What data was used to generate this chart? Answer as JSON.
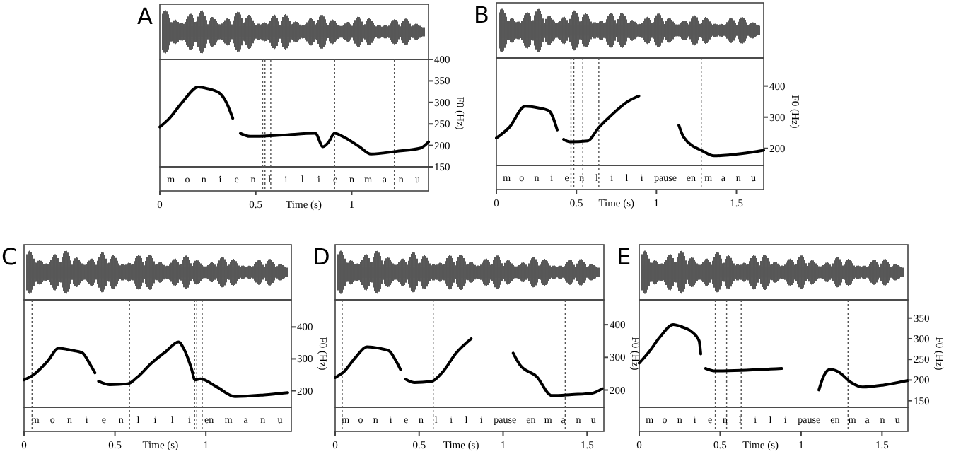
{
  "chart_data": [
    {
      "type": "line",
      "title": "A",
      "xlabel": "Time (s)",
      "ylabel": "F0 (Hz)",
      "xlim": [
        0,
        1.4
      ],
      "xticks": [
        0,
        0.5,
        1
      ],
      "ylim": [
        150,
        400
      ],
      "yticks": [
        150,
        200,
        250,
        300,
        350,
        400
      ],
      "grid": false,
      "line_style": "solid",
      "series": [
        {
          "color": "#000000",
          "x": [
            0,
            0.05,
            0.12,
            0.2,
            0.25,
            0.31,
            0.35,
            0.38,
            0.4,
            0.42,
            0.47,
            0.64,
            0.81,
            0.85,
            0.88,
            0.91,
            0.96,
            1.04,
            1.1,
            1.23,
            1.36,
            1.4
          ],
          "values": [
            243,
            263,
            302,
            336,
            332,
            322,
            297,
            263,
            null,
            228,
            221,
            224,
            228,
            197,
            208,
            228,
            219,
            197,
            180,
            186,
            194,
            208
          ]
        }
      ],
      "ref_lines": [
        {
          "axis": "x",
          "value": 0.536,
          "line_style": "dotted",
          "color": "#555555"
        },
        {
          "axis": "x",
          "value": 0.548,
          "line_style": "dotted",
          "color": "#555555"
        },
        {
          "axis": "x",
          "value": 0.578,
          "line_style": "dotted",
          "color": "#555555"
        },
        {
          "axis": "x",
          "value": 0.911,
          "line_style": "dotted",
          "color": "#555555"
        },
        {
          "axis": "x",
          "value": 1.222,
          "line_style": "dotted",
          "color": "#555555"
        }
      ],
      "annotations": [
        "m",
        "o",
        "n",
        "i",
        "e",
        "n",
        "l",
        "i",
        "l",
        "i",
        "e",
        "n",
        "m",
        "a",
        "n",
        "u"
      ]
    },
    {
      "type": "line",
      "title": "B",
      "xlabel": "Time (s)",
      "ylabel": "F0 (Hz)",
      "xlim": [
        0,
        1.67
      ],
      "xticks": [
        0,
        0.5,
        1,
        1.5
      ],
      "ylim": [
        145,
        490
      ],
      "yticks": [
        200,
        300,
        400
      ],
      "grid": false,
      "line_style": "solid",
      "series": [
        {
          "color": "#000000",
          "x": [
            0,
            0.08,
            0.18,
            0.26,
            0.33,
            0.38,
            0.4,
            0.42,
            0.46,
            0.57,
            0.64,
            0.73,
            0.82,
            0.89,
            1.0,
            1.14,
            1.17,
            1.29,
            1.36,
            1.53,
            1.67
          ],
          "values": [
            233,
            267,
            335,
            330,
            320,
            259,
            null,
            229,
            221,
            224,
            267,
            312,
            350,
            368,
            null,
            274,
            236,
            191,
            176,
            183,
            194
          ]
        }
      ],
      "ref_lines": [
        {
          "axis": "x",
          "value": 0.466,
          "line_style": "dotted",
          "color": "#555555"
        },
        {
          "axis": "x",
          "value": 0.484,
          "line_style": "dotted",
          "color": "#555555"
        },
        {
          "axis": "x",
          "value": 0.54,
          "line_style": "dotted",
          "color": "#555555"
        },
        {
          "axis": "x",
          "value": 0.64,
          "line_style": "dotted",
          "color": "#555555"
        },
        {
          "axis": "x",
          "value": 1.28,
          "line_style": "dotted",
          "color": "#555555"
        }
      ],
      "annotations": [
        "m",
        "o",
        "n",
        "i",
        "e",
        "n",
        "l",
        "i",
        "l",
        "i",
        "pause",
        "en",
        "m",
        "a",
        "n",
        "u"
      ]
    },
    {
      "type": "line",
      "title": "C",
      "xlabel": "Time (s)",
      "ylabel": "F0 (Hz)",
      "xlim": [
        0,
        1.47
      ],
      "xticks": [
        0,
        0.5,
        1
      ],
      "ylim": [
        148,
        485
      ],
      "yticks": [
        200,
        300,
        400
      ],
      "grid": false,
      "line_style": "solid",
      "series": [
        {
          "color": "#000000",
          "x": [
            0,
            0.05,
            0.13,
            0.19,
            0.26,
            0.32,
            0.36,
            0.39,
            0.4,
            0.41,
            0.47,
            0.57,
            0.62,
            0.7,
            0.78,
            0.85,
            0.88,
            0.92,
            0.94,
            0.97,
            1.06,
            1.16,
            1.32,
            1.45
          ],
          "values": [
            234,
            249,
            293,
            333,
            327,
            319,
            286,
            256,
            null,
            230,
            219,
            222,
            241,
            286,
            323,
            353,
            330,
            271,
            234,
            237,
            212,
            182,
            187,
            194
          ]
        }
      ],
      "ref_lines": [
        {
          "axis": "x",
          "value": 0.044,
          "line_style": "dotted",
          "color": "#555555"
        },
        {
          "axis": "x",
          "value": 0.58,
          "line_style": "dotted",
          "color": "#555555"
        },
        {
          "axis": "x",
          "value": 0.938,
          "line_style": "dotted",
          "color": "#555555"
        },
        {
          "axis": "x",
          "value": 0.95,
          "line_style": "dotted",
          "color": "#555555"
        },
        {
          "axis": "x",
          "value": 0.98,
          "line_style": "dotted",
          "color": "#555555"
        }
      ],
      "annotations": [
        "m",
        "o",
        "n",
        "i",
        "e",
        "n",
        "l",
        "i",
        "l",
        "i",
        "en",
        "m",
        "a",
        "n",
        "u"
      ]
    },
    {
      "type": "line",
      "title": "D",
      "xlabel": "Time (s)",
      "ylabel": "F0 (Hz)",
      "xlim": [
        0,
        1.6
      ],
      "xticks": [
        0,
        0.5,
        1,
        1.5
      ],
      "ylim": [
        147,
        476
      ],
      "yticks": [
        200,
        300,
        400
      ],
      "grid": false,
      "line_style": "solid",
      "series": [
        {
          "color": "#000000",
          "x": [
            0,
            0.05,
            0.12,
            0.19,
            0.26,
            0.32,
            0.36,
            0.39,
            0.4,
            0.42,
            0.47,
            0.57,
            0.64,
            0.72,
            0.81,
            0.95,
            1.06,
            1.1,
            1.2,
            1.29,
            1.41,
            1.53,
            1.59
          ],
          "values": [
            238,
            255,
            299,
            332,
            328,
            320,
            291,
            262,
            null,
            233,
            223,
            226,
            255,
            313,
            357,
            null,
            313,
            277,
            241,
            183,
            186,
            190,
            204
          ]
        }
      ],
      "ref_lines": [
        {
          "axis": "x",
          "value": 0.042,
          "line_style": "dotted",
          "color": "#555555"
        },
        {
          "axis": "x",
          "value": 0.584,
          "line_style": "dotted",
          "color": "#555555"
        },
        {
          "axis": "x",
          "value": 1.37,
          "line_style": "dotted",
          "color": "#555555"
        }
      ],
      "annotations": [
        "m",
        "o",
        "n",
        "i",
        "e",
        "n",
        "l",
        "i",
        "l",
        "i",
        "pause",
        "en",
        "m",
        "a",
        "n",
        "u"
      ]
    },
    {
      "type": "line",
      "title": "E",
      "xlabel": "Time (s)",
      "ylabel": "F0 (Hz)",
      "xlim": [
        0,
        1.66
      ],
      "xticks": [
        0,
        0.5,
        1,
        1.5
      ],
      "ylim": [
        134,
        394
      ],
      "yticks": [
        150,
        200,
        250,
        300,
        350
      ],
      "grid": false,
      "line_style": "solid",
      "series": [
        {
          "color": "#000000",
          "x": [
            0,
            0.06,
            0.13,
            0.21,
            0.26,
            0.32,
            0.37,
            0.38,
            0.4,
            0.41,
            0.47,
            0.66,
            0.88,
            1.0,
            1.11,
            1.14,
            1.18,
            1.23,
            1.31,
            1.38,
            1.51,
            1.66
          ],
          "values": [
            241,
            268,
            305,
            334,
            329,
            318,
            295,
            263,
            null,
            228,
            222,
            224,
            228,
            null,
            176,
            210,
            226,
            220,
            194,
            183,
            188,
            199
          ]
        }
      ],
      "ref_lines": [
        {
          "axis": "x",
          "value": 0.47,
          "line_style": "dotted",
          "color": "#555555"
        },
        {
          "axis": "x",
          "value": 0.54,
          "line_style": "dotted",
          "color": "#555555"
        },
        {
          "axis": "x",
          "value": 0.63,
          "line_style": "dotted",
          "color": "#555555"
        },
        {
          "axis": "x",
          "value": 1.29,
          "line_style": "dotted",
          "color": "#555555"
        }
      ],
      "annotations": [
        "m",
        "o",
        "n",
        "i",
        "e",
        "n",
        "l",
        "i",
        "l",
        "i",
        "pause",
        "en",
        "m",
        "a",
        "n",
        "u"
      ]
    }
  ]
}
